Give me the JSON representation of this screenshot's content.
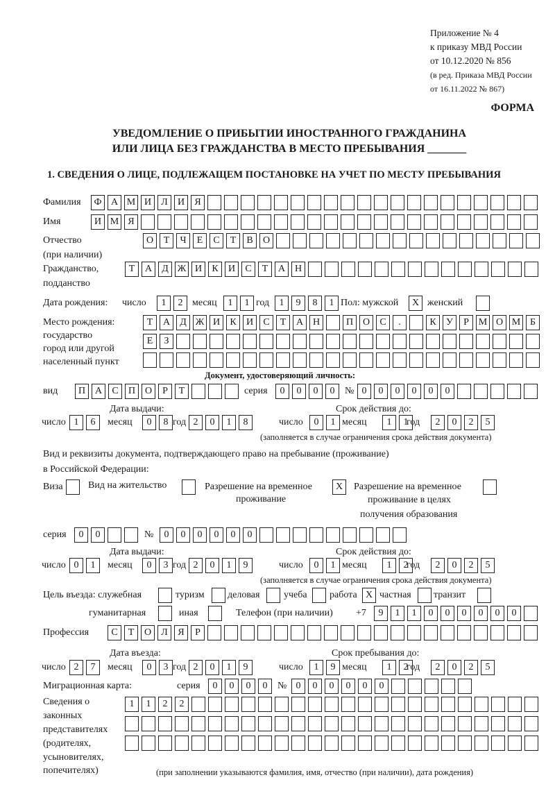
{
  "header": {
    "appendix": [
      "Приложение № 4",
      "к приказу МВД России",
      "от 10.12.2020 № 856",
      "(в ред. Приказа МВД России",
      "от 16.11.2022 № 867)"
    ],
    "forma": "ФОРМА",
    "title_line1": "УВЕДОМЛЕНИЕ О ПРИБЫТИИ ИНОСТРАННОГО ГРАЖДАНИНА",
    "title_line2": "ИЛИ ЛИЦА БЕЗ ГРАЖДАНСТВА В МЕСТО ПРЕБЫВАНИЯ _______",
    "section1": "1. СВЕДЕНИЯ О ЛИЦЕ, ПОДЛЕЖАЩЕМ ПОСТАНОВКЕ НА УЧЕТ ПО МЕСТУ ПРЕБЫВАНИЯ"
  },
  "labels": {
    "surname": "Фамилия",
    "name": "Имя",
    "patronymic": "Отчество",
    "patronymic_note": "(при наличии)",
    "citizenship": "Гражданство,",
    "citizenship2": "подданство",
    "birth_date": "Дата рождения:",
    "day": "число",
    "month": "месяц",
    "year": "год",
    "sex_male": "Пол: мужской",
    "sex_female": "женский",
    "birth_place": "Место рождения:",
    "birth_place2": "государство",
    "birth_place3": "город или другой",
    "birth_place4": "населенный пункт",
    "id_doc": "Документ, удостоверяющий личность:",
    "doc_type": "вид",
    "series": "серия",
    "number": "№",
    "issue_date": "Дата выдачи:",
    "valid_until": "Срок действия до:",
    "valid_note": "(заполняется в случае ограничения срока действия документа)",
    "residence_doc": "Вид и реквизиты документа, подтверждающего право на пребывание (проживание)",
    "residence_doc2": "в Российской Федерации:",
    "visa": "Виза",
    "residence_permit": "Вид на жительство",
    "temp_permit": "Разрешение на временное",
    "temp_permit2": "проживание",
    "temp_permit_edu": "Разрешение на временное",
    "temp_permit_edu2": "проживание в целях",
    "temp_permit_edu3": "получения образования",
    "purpose": "Цель въезда: служебная",
    "tourism": "туризм",
    "business": "деловая",
    "study": "учеба",
    "work": "работа",
    "private": "частная",
    "transit": "транзит",
    "humanitarian": "гуманитарная",
    "other": "иная",
    "phone": "Телефон (при наличии)",
    "phone_prefix": "+7",
    "profession": "Профессия",
    "entry_date": "Дата въезда:",
    "stay_until": "Срок пребывания до:",
    "migration_card": "Миграционная карта:",
    "reps1": "Сведения о",
    "reps2": "законных",
    "reps3": "представителях",
    "reps4": "(родителях,",
    "reps5": "усыновителях,",
    "reps6": "попечителях)",
    "reps_note": "(при заполнении указываются фамилия, имя, отчество (при наличии), дата рождения)"
  },
  "person": {
    "surname": "ФАМИЛИЯ",
    "name": "ИМЯ",
    "patronymic": "ОТЧЕСТВО",
    "citizenship": "ТАДЖИКИСТАН"
  },
  "birth": {
    "day": "12",
    "month": "11",
    "year": "1981",
    "sex_male": "X",
    "sex_female": "",
    "place_1": "ТАДЖИКИСТАН ПОС. КУРМОМБ",
    "place_2": "ЕЗ",
    "place_3": ""
  },
  "id_doc": {
    "type": "ПАСПОРТ",
    "series": "0000",
    "number": "000000",
    "issue_day": "16",
    "issue_month": "08",
    "issue_year": "2018",
    "valid_day": "01",
    "valid_month": "11",
    "valid_year": "2025"
  },
  "residence": {
    "visa": "",
    "residence_permit": "",
    "temp_permit": "X",
    "temp_permit_edu": "",
    "series": "00",
    "number": "000000",
    "issue_day": "01",
    "issue_month": "03",
    "issue_year": "2019",
    "valid_day": "01",
    "valid_month": "12",
    "valid_year": "2025"
  },
  "purpose": {
    "service": "",
    "tourism": "",
    "business": "",
    "study": "",
    "work": "X",
    "private": "",
    "transit": "",
    "humanitarian": "",
    "other": ""
  },
  "phone": {
    "number": "911000000"
  },
  "profession": "СТОЛЯР",
  "entry": {
    "day": "27",
    "month": "03",
    "year": "2019",
    "stay_day": "19",
    "stay_month": "12",
    "stay_year": "2025"
  },
  "migration_card": {
    "series": "0000",
    "number": "000000"
  },
  "representatives": {
    "line_1": "1122",
    "line_2": "",
    "line_3": ""
  }
}
